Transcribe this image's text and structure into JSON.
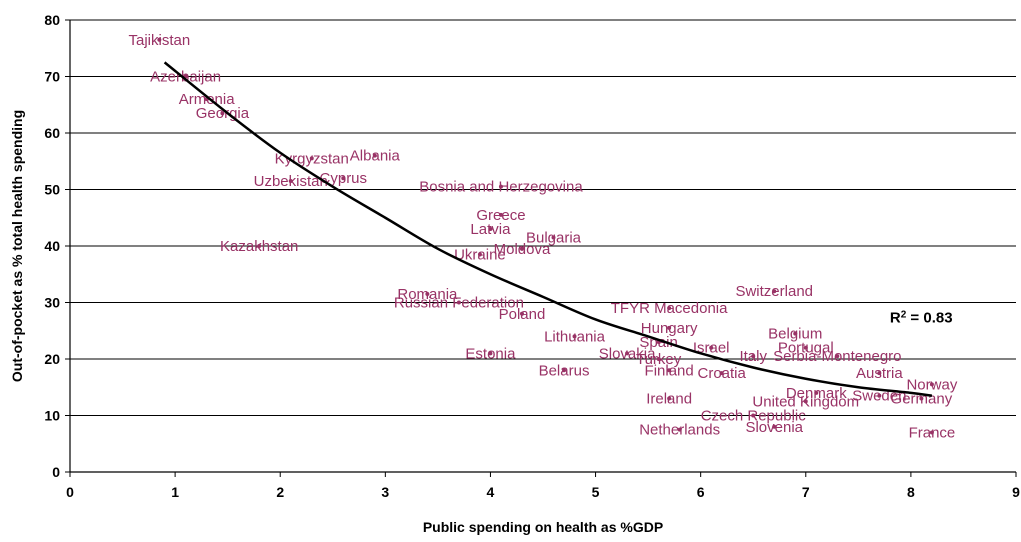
{
  "chart_data": {
    "type": "scatter",
    "title": "",
    "xlabel": "Public spending on health as %GDP",
    "ylabel": "Out-of-pocket as % total health spending",
    "xlim": [
      0,
      9
    ],
    "ylim": [
      0,
      80
    ],
    "xticks": [
      "0",
      "1",
      "2",
      "3",
      "4",
      "5",
      "6",
      "7",
      "8",
      "9"
    ],
    "yticks": [
      "0",
      "10",
      "20",
      "30",
      "40",
      "50",
      "60",
      "70",
      "80"
    ],
    "grid": "horizontal",
    "point_color": "#993366",
    "trendline_color": "#000000",
    "annotation": {
      "r2_prefix": "R",
      "r2_superscript": "2",
      "r2_suffix": " = 0.83"
    },
    "points": [
      {
        "label": "Tajikistan",
        "x": 0.85,
        "y": 76.5
      },
      {
        "label": "Azerbaijan",
        "x": 1.1,
        "y": 70.0
      },
      {
        "label": "Armenia",
        "x": 1.3,
        "y": 66.0
      },
      {
        "label": "Georgia",
        "x": 1.45,
        "y": 63.5
      },
      {
        "label": "Kyrgyzstan",
        "x": 2.3,
        "y": 55.5
      },
      {
        "label": "Albania",
        "x": 2.9,
        "y": 56.0
      },
      {
        "label": "Uzbekistan",
        "x": 2.1,
        "y": 51.5
      },
      {
        "label": "Cyprus",
        "x": 2.6,
        "y": 52.0
      },
      {
        "label": "Bosnia and Herzegovina",
        "x": 4.1,
        "y": 50.5
      },
      {
        "label": "Greece",
        "x": 4.1,
        "y": 45.5
      },
      {
        "label": "Latvia",
        "x": 4.0,
        "y": 43.0
      },
      {
        "label": "Bulgaria",
        "x": 4.6,
        "y": 41.5
      },
      {
        "label": "Kazakhstan",
        "x": 1.8,
        "y": 40.0
      },
      {
        "label": "Ukraine",
        "x": 3.9,
        "y": 38.5
      },
      {
        "label": "Moldova",
        "x": 4.3,
        "y": 39.5
      },
      {
        "label": "Switzerland",
        "x": 6.7,
        "y": 32.0
      },
      {
        "label": "Romania",
        "x": 3.4,
        "y": 31.5
      },
      {
        "label": "Russian Federation",
        "x": 3.7,
        "y": 30.0
      },
      {
        "label": "TFYR Macedonia",
        "x": 5.7,
        "y": 29.0
      },
      {
        "label": "Poland",
        "x": 4.3,
        "y": 28.0
      },
      {
        "label": "Hungary",
        "x": 5.7,
        "y": 25.5
      },
      {
        "label": "Belgium",
        "x": 6.9,
        "y": 24.5
      },
      {
        "label": "Lithuania",
        "x": 4.8,
        "y": 24.0
      },
      {
        "label": "Spain",
        "x": 5.6,
        "y": 23.0
      },
      {
        "label": "Israel",
        "x": 6.1,
        "y": 22.0
      },
      {
        "label": "Portugal",
        "x": 7.0,
        "y": 22.0
      },
      {
        "label": "Estonia",
        "x": 4.0,
        "y": 21.0
      },
      {
        "label": "Slovakia",
        "x": 5.3,
        "y": 21.0
      },
      {
        "label": "Turkey",
        "x": 5.6,
        "y": 20.0
      },
      {
        "label": "Italy",
        "x": 6.5,
        "y": 20.5
      },
      {
        "label": "Serbia-Montenegro",
        "x": 7.3,
        "y": 20.5
      },
      {
        "label": "Belarus",
        "x": 4.7,
        "y": 18.0
      },
      {
        "label": "Finland",
        "x": 5.7,
        "y": 18.0
      },
      {
        "label": "Croatia",
        "x": 6.2,
        "y": 17.5
      },
      {
        "label": "Austria",
        "x": 7.7,
        "y": 17.5
      },
      {
        "label": "Norway",
        "x": 8.2,
        "y": 15.5
      },
      {
        "label": "Denmark",
        "x": 7.1,
        "y": 14.0
      },
      {
        "label": "Ireland",
        "x": 5.7,
        "y": 13.0
      },
      {
        "label": "United Kingdom",
        "x": 7.0,
        "y": 12.5
      },
      {
        "label": "Sweden",
        "x": 7.7,
        "y": 13.5
      },
      {
        "label": "Germany",
        "x": 8.1,
        "y": 13.0
      },
      {
        "label": "Czech Republic",
        "x": 6.5,
        "y": 10.0
      },
      {
        "label": "Netherlands",
        "x": 5.8,
        "y": 7.5
      },
      {
        "label": "Slovenia",
        "x": 6.7,
        "y": 8.0
      },
      {
        "label": "France",
        "x": 8.2,
        "y": 7.0
      }
    ],
    "trendline": {
      "type": "polynomial",
      "x": [
        0.9,
        1.5,
        2.0,
        2.5,
        3.0,
        3.5,
        4.0,
        4.5,
        5.0,
        5.5,
        6.0,
        6.5,
        7.0,
        7.5,
        8.0,
        8.2
      ],
      "y": [
        72.5,
        63.5,
        56.5,
        50.5,
        45.0,
        39.5,
        35.0,
        31.0,
        27.0,
        24.0,
        21.0,
        18.5,
        16.5,
        15.0,
        14.0,
        13.5
      ]
    }
  }
}
